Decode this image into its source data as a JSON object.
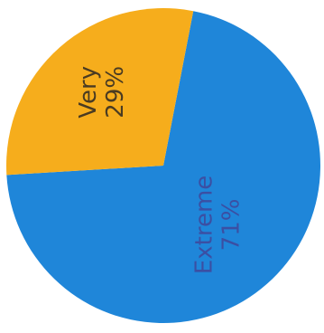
{
  "chart_data": {
    "type": "pie",
    "slices": [
      {
        "label": "Extreme",
        "value": 71,
        "value_label": "71%",
        "color": "#1f86d9",
        "label_color": "#3b4fa3"
      },
      {
        "label": "Very",
        "value": 29,
        "value_label": "29%",
        "color": "#f6ad1c",
        "label_color": "#4a3b22"
      }
    ],
    "start_angle_deg": 11,
    "direction": "clockwise",
    "label_rotation_deg": -90
  }
}
